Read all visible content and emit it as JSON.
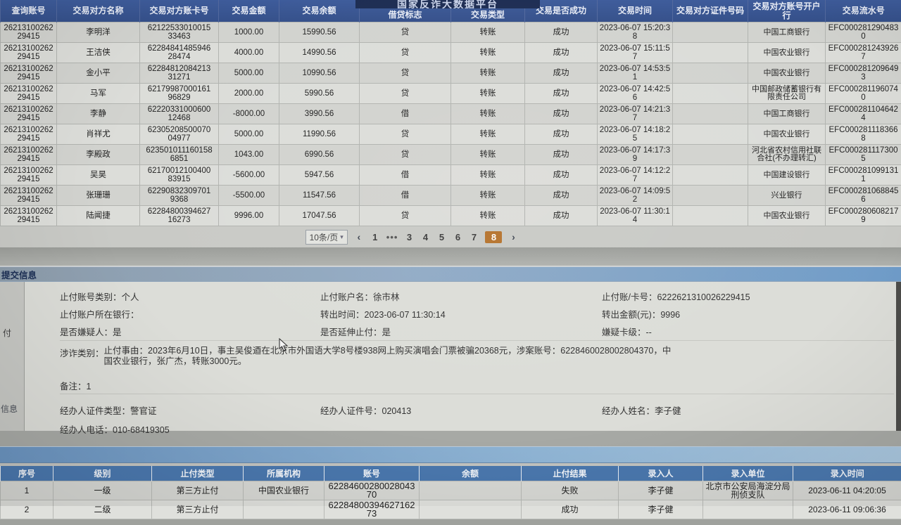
{
  "platform": {
    "title": "国家反诈大数据平台"
  },
  "transactions_table": {
    "headers": [
      "查询账号",
      "交易对方名称",
      "交易对方账卡号",
      "交易金额",
      "交易余额",
      "借贷标志",
      "交易类型",
      "交易是否成功",
      "交易时间",
      "交易对方证件号码",
      "交易对方账号开户行",
      "交易流水号"
    ],
    "rows": [
      [
        "2621310026229415",
        "李明洋",
        "6212253301001533463",
        "1000.00",
        "15990.56",
        "贷",
        "转账",
        "成功",
        "2023-06-07 15:20:38",
        "",
        "中国工商银行",
        "EFC0002812904830"
      ],
      [
        "2621310026229415",
        "王洁侠",
        "6228484148594628474",
        "4000.00",
        "14990.56",
        "贷",
        "转账",
        "成功",
        "2023-06-07 15:11:57",
        "",
        "中国农业银行",
        "EFC0002812439267"
      ],
      [
        "2621310026229415",
        "金小平",
        "6228481208421331271",
        "5000.00",
        "10990.56",
        "贷",
        "转账",
        "成功",
        "2023-06-07 14:53:51",
        "",
        "中国农业银行",
        "EFC0002812096493"
      ],
      [
        "2621310026229415",
        "马军",
        "6217998700016196829",
        "2000.00",
        "5990.56",
        "贷",
        "转账",
        "成功",
        "2023-06-07 14:42:56",
        "",
        "中国邮政储蓄银行有限责任公司",
        "EFC0002811960740"
      ],
      [
        "2621310026229415",
        "李静",
        "6222033100060012468",
        "-8000.00",
        "3990.56",
        "借",
        "转账",
        "成功",
        "2023-06-07 14:21:37",
        "",
        "中国工商银行",
        "EFC0002811046424"
      ],
      [
        "2621310026229415",
        "肖祥尤",
        "6230520850007004977",
        "5000.00",
        "11990.56",
        "贷",
        "转账",
        "成功",
        "2023-06-07 14:18:25",
        "",
        "中国农业银行",
        "EFC0002811183668"
      ],
      [
        "2621310026229415",
        "李殿政",
        "6235010111601586851",
        "1043.00",
        "6990.56",
        "贷",
        "转账",
        "成功",
        "2023-06-07 14:17:39",
        "",
        "河北省农村信用社联合社(不办理转汇)",
        "EFC0002811173005"
      ],
      [
        "2621310026229415",
        "吴昊",
        "6217001210040083915",
        "-5600.00",
        "5947.56",
        "借",
        "转账",
        "成功",
        "2023-06-07 14:12:27",
        "",
        "中国建设银行",
        "EFC0002810991311"
      ],
      [
        "2621310026229415",
        "张珊珊",
        "622908323097019368",
        "-5500.00",
        "11547.56",
        "借",
        "转账",
        "成功",
        "2023-06-07 14:09:52",
        "",
        "兴业银行",
        "EFC0002810688456"
      ],
      [
        "2621310026229415",
        "陆闻捷",
        "6228480039462716273",
        "9996.00",
        "17047.56",
        "贷",
        "转账",
        "成功",
        "2023-06-07 11:30:14",
        "",
        "中国农业银行",
        "EFC0002806082179"
      ]
    ]
  },
  "pagination": {
    "page_size": "10条/页",
    "prev": "‹",
    "next": "›",
    "pages": [
      "1",
      "•••",
      "3",
      "4",
      "5",
      "6",
      "7",
      "8"
    ],
    "active_page": "8",
    "active_color": "#b5722c"
  },
  "submit_panel": {
    "title": "提交信息",
    "sidebar_fragments": {
      "f1": "付",
      "f2": "信息"
    },
    "fields": {
      "account_category": {
        "label": "止付账号类别：",
        "value": "个人"
      },
      "account_name": {
        "label": "止付账户名：",
        "value": "徐市林"
      },
      "card_no": {
        "label": "止付账/卡号：",
        "value": "6222621310026229415"
      },
      "bank": {
        "label": "止付账户所在银行：",
        "value": ""
      },
      "transfer_time": {
        "label": "转出时间：",
        "value": "2023-06-07 11:30:14"
      },
      "transfer_amount": {
        "label": "转出金额(元)：",
        "value": "9996"
      },
      "is_suspect": {
        "label": "是否嫌疑人：",
        "value": "是"
      },
      "extended_stop": {
        "label": "是否延伸止付：",
        "value": "是"
      },
      "suspect_card_level": {
        "label": "嫌疑卡级：",
        "value": "--"
      },
      "fraud_category": {
        "label": "涉诈类别：",
        "value": ""
      },
      "stop_reason": {
        "label": "止付事由：",
        "value": "2023年6月10日，事主吴俊逎在北京市外国语大学8号楼938网上购买演唱会门票被骗20368元，涉案账号：6228460028002804370，中国农业银行，张广杰，转账3000元。"
      },
      "remark": {
        "label": "备注：",
        "value": "1"
      },
      "agent_cert_type": {
        "label": "经办人证件类型：",
        "value": "警官证"
      },
      "agent_cert_no": {
        "label": "经办人证件号：",
        "value": "020413"
      },
      "agent_name": {
        "label": "经办人姓名：",
        "value": "李子健"
      },
      "agent_phone": {
        "label": "经办人电话：",
        "value": "010-68419305"
      }
    }
  },
  "stop_payment_table": {
    "headers": [
      "序号",
      "级别",
      "止付类型",
      "所属机构",
      "账号",
      "余额",
      "止付结果",
      "录入人",
      "录入单位",
      "录入时间"
    ],
    "rows": [
      [
        "1",
        "一级",
        "第三方止付",
        "中国农业银行",
        "6228460028002804370",
        "",
        "失败",
        "李子健",
        "北京市公安局海淀分局刑侦支队",
        "2023-06-11 04:20:05"
      ],
      [
        "2",
        "二级",
        "第三方止付",
        "",
        "6228480039462716273",
        "",
        "成功",
        "李子健",
        "",
        "2023-06-11 09:06:36"
      ]
    ]
  },
  "colors": {
    "header_blue": "#35508a",
    "bottom_header_blue": "#4a77ad",
    "section_bar_blue": "#6f9cc9",
    "active_page_orange": "#b5722c"
  }
}
